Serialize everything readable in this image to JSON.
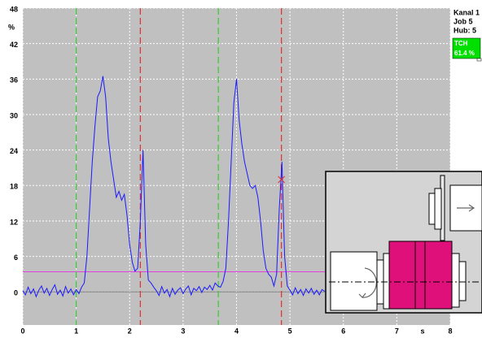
{
  "chart_data": {
    "type": "line",
    "y_label": "%",
    "x_label": "s",
    "xlim": [
      0,
      8
    ],
    "ylim": [
      -5.6,
      48
    ],
    "xticks": [
      0,
      1,
      2,
      3,
      4,
      5,
      6,
      7,
      8
    ],
    "yticks": [
      0,
      6,
      12,
      18,
      24,
      30,
      36,
      42,
      48
    ],
    "grid": true,
    "zero_line": 0,
    "threshold": {
      "value": 3.4,
      "color": "#e040e0"
    },
    "markers": [
      {
        "x": 1.0,
        "color": "#33cc33"
      },
      {
        "x": 2.2,
        "color": "#e03030"
      },
      {
        "x": 3.66,
        "color": "#33cc33"
      },
      {
        "x": 4.84,
        "color": "#e03030"
      }
    ],
    "point": {
      "x": 4.84,
      "y": 19,
      "color": "#e03030"
    },
    "x": [
      0,
      0.05,
      0.1,
      0.15,
      0.2,
      0.25,
      0.3,
      0.35,
      0.4,
      0.45,
      0.5,
      0.55,
      0.6,
      0.65,
      0.7,
      0.75,
      0.8,
      0.85,
      0.9,
      0.95,
      1,
      1.05,
      1.1,
      1.15,
      1.2,
      1.25,
      1.3,
      1.35,
      1.4,
      1.45,
      1.5,
      1.55,
      1.6,
      1.65,
      1.7,
      1.75,
      1.8,
      1.85,
      1.9,
      1.95,
      2,
      2.05,
      2.1,
      2.15,
      2.2,
      2.25,
      2.3,
      2.35,
      2.4,
      2.45,
      2.5,
      2.55,
      2.6,
      2.65,
      2.7,
      2.75,
      2.8,
      2.85,
      2.9,
      2.95,
      3,
      3.05,
      3.1,
      3.15,
      3.2,
      3.25,
      3.3,
      3.35,
      3.4,
      3.45,
      3.5,
      3.55,
      3.6,
      3.65,
      3.7,
      3.75,
      3.8,
      3.85,
      3.9,
      3.95,
      4,
      4.05,
      4.1,
      4.15,
      4.2,
      4.25,
      4.3,
      4.35,
      4.4,
      4.45,
      4.5,
      4.55,
      4.6,
      4.65,
      4.7,
      4.75,
      4.8,
      4.85,
      4.9,
      4.95,
      5,
      5.05,
      5.1,
      5.15,
      5.2,
      5.25,
      5.3,
      5.35,
      5.4,
      5.45,
      5.5,
      5.55,
      5.6,
      5.65
    ],
    "series": [
      {
        "color": "#1a1aff",
        "values": [
          0.2,
          -0.5,
          0.8,
          -0.3,
          0.5,
          -0.8,
          0.3,
          1.0,
          -0.2,
          0.6,
          -0.6,
          0.4,
          1.2,
          -0.4,
          0.3,
          -0.7,
          0.9,
          -0.2,
          0.5,
          -0.5,
          0.4,
          -0.3,
          0.8,
          1.5,
          6,
          14,
          22,
          28,
          33,
          34,
          36.5,
          33,
          26,
          22,
          19,
          16,
          17,
          15.5,
          16.5,
          13,
          8,
          5,
          3.5,
          4,
          12,
          24,
          8,
          2,
          1.5,
          0.8,
          0.2,
          -0.6,
          0.9,
          -0.2,
          0.4,
          -0.8,
          0.6,
          -0.4,
          0.3,
          0.7,
          -0.3,
          0.5,
          1.0,
          -0.5,
          0.6,
          0.2,
          0.9,
          -0.1,
          0.8,
          0.4,
          1.1,
          0.3,
          1.5,
          1.0,
          0.8,
          1.8,
          4,
          12,
          22,
          32,
          36,
          29,
          25,
          22,
          20,
          18,
          17.5,
          18,
          16,
          12,
          7,
          4,
          3,
          2.5,
          1.0,
          3,
          14,
          22,
          6,
          1,
          0.3,
          -0.5,
          0.7,
          -0.3,
          0.4,
          -0.6,
          0.5,
          -0.2,
          0.6,
          -0.4,
          0.3,
          -0.5,
          0.4,
          0.1
        ]
      }
    ],
    "side": {
      "lines": [
        "Kanal 1",
        "Job 5",
        "Hub: 5"
      ],
      "badge": {
        "label": "TCH",
        "text": "61.4 %"
      }
    }
  }
}
